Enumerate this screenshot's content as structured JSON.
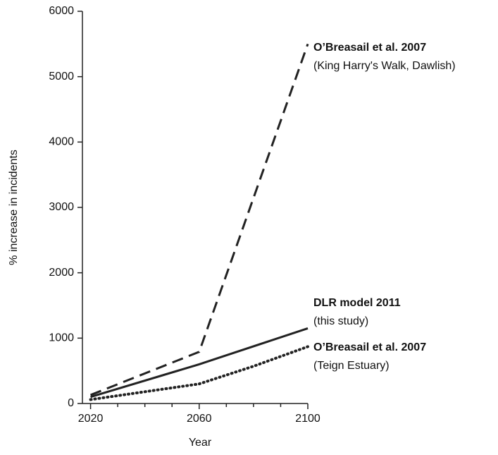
{
  "chart_data": {
    "type": "line",
    "x_label": "Year",
    "y_label": "% increase in incidents",
    "xlim": [
      2017,
      2100
    ],
    "xticks": [
      2020,
      2060,
      2100
    ],
    "xminorticks": [
      2030,
      2040,
      2050,
      2070,
      2080,
      2090
    ],
    "ylim": [
      0,
      6000
    ],
    "yticks": [
      0,
      1000,
      2000,
      3000,
      4000,
      5000,
      6000
    ],
    "series": [
      {
        "name": "O’Breasail et al. 2007",
        "note": "(King Harry's Walk, Dawlish)",
        "color": "#222222",
        "style": "dashed",
        "x": [
          2020,
          2060,
          2100
        ],
        "values": [
          130,
          790,
          5500
        ]
      },
      {
        "name": "DLR model 2011",
        "note": "(this study)",
        "color": "#222222",
        "style": "solid",
        "x": [
          2020,
          2060,
          2100
        ],
        "values": [
          100,
          600,
          1150
        ]
      },
      {
        "name": "O’Breasail et al. 2007",
        "note": "(Teign Estuary)",
        "color": "#222222",
        "style": "dotted",
        "x": [
          2020,
          2060,
          2080,
          2100
        ],
        "values": [
          60,
          300,
          570,
          870
        ]
      }
    ]
  }
}
